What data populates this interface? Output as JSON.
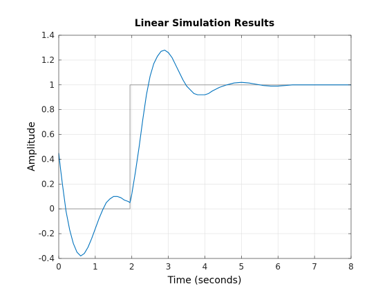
{
  "chart_data": {
    "type": "line",
    "title": "Linear Simulation Results",
    "xlabel": "Time (seconds)",
    "ylabel": "Amplitude",
    "xlim": [
      0,
      8
    ],
    "ylim": [
      -0.4,
      1.4
    ],
    "xticks": [
      0,
      1,
      2,
      3,
      4,
      5,
      6,
      7,
      8
    ],
    "yticks": [
      -0.4,
      -0.2,
      0,
      0.2,
      0.4,
      0.6,
      0.8,
      1,
      1.2,
      1.4
    ],
    "grid": true,
    "series": [
      {
        "role": "input",
        "color": "#8c8c8c",
        "x": [
          0,
          1.95,
          1.95,
          8
        ],
        "y": [
          0,
          0,
          1,
          1
        ]
      },
      {
        "role": "response",
        "color": "#0072bd",
        "x": [
          0,
          0.05,
          0.1,
          0.2,
          0.3,
          0.4,
          0.5,
          0.6,
          0.7,
          0.8,
          0.9,
          1.0,
          1.1,
          1.2,
          1.3,
          1.4,
          1.5,
          1.6,
          1.7,
          1.8,
          1.9,
          1.95,
          2.0,
          2.1,
          2.2,
          2.3,
          2.4,
          2.5,
          2.6,
          2.7,
          2.8,
          2.9,
          3.0,
          3.1,
          3.2,
          3.3,
          3.4,
          3.5,
          3.6,
          3.7,
          3.8,
          3.9,
          4.0,
          4.1,
          4.2,
          4.4,
          4.6,
          4.8,
          5.0,
          5.2,
          5.4,
          5.6,
          5.8,
          6.0,
          6.2,
          6.4,
          6.6,
          7.0,
          7.5,
          8.0
        ],
        "y": [
          0.45,
          0.32,
          0.2,
          -0.02,
          -0.17,
          -0.28,
          -0.35,
          -0.38,
          -0.36,
          -0.31,
          -0.24,
          -0.16,
          -0.08,
          -0.01,
          0.05,
          0.08,
          0.1,
          0.1,
          0.09,
          0.07,
          0.06,
          0.05,
          0.12,
          0.3,
          0.5,
          0.72,
          0.92,
          1.07,
          1.17,
          1.23,
          1.27,
          1.28,
          1.26,
          1.22,
          1.16,
          1.1,
          1.04,
          0.99,
          0.96,
          0.93,
          0.92,
          0.92,
          0.92,
          0.93,
          0.95,
          0.98,
          1.0,
          1.015,
          1.02,
          1.015,
          1.005,
          0.995,
          0.99,
          0.99,
          0.995,
          1.0,
          1.0,
          1.0,
          1.0,
          1.0
        ]
      }
    ]
  }
}
